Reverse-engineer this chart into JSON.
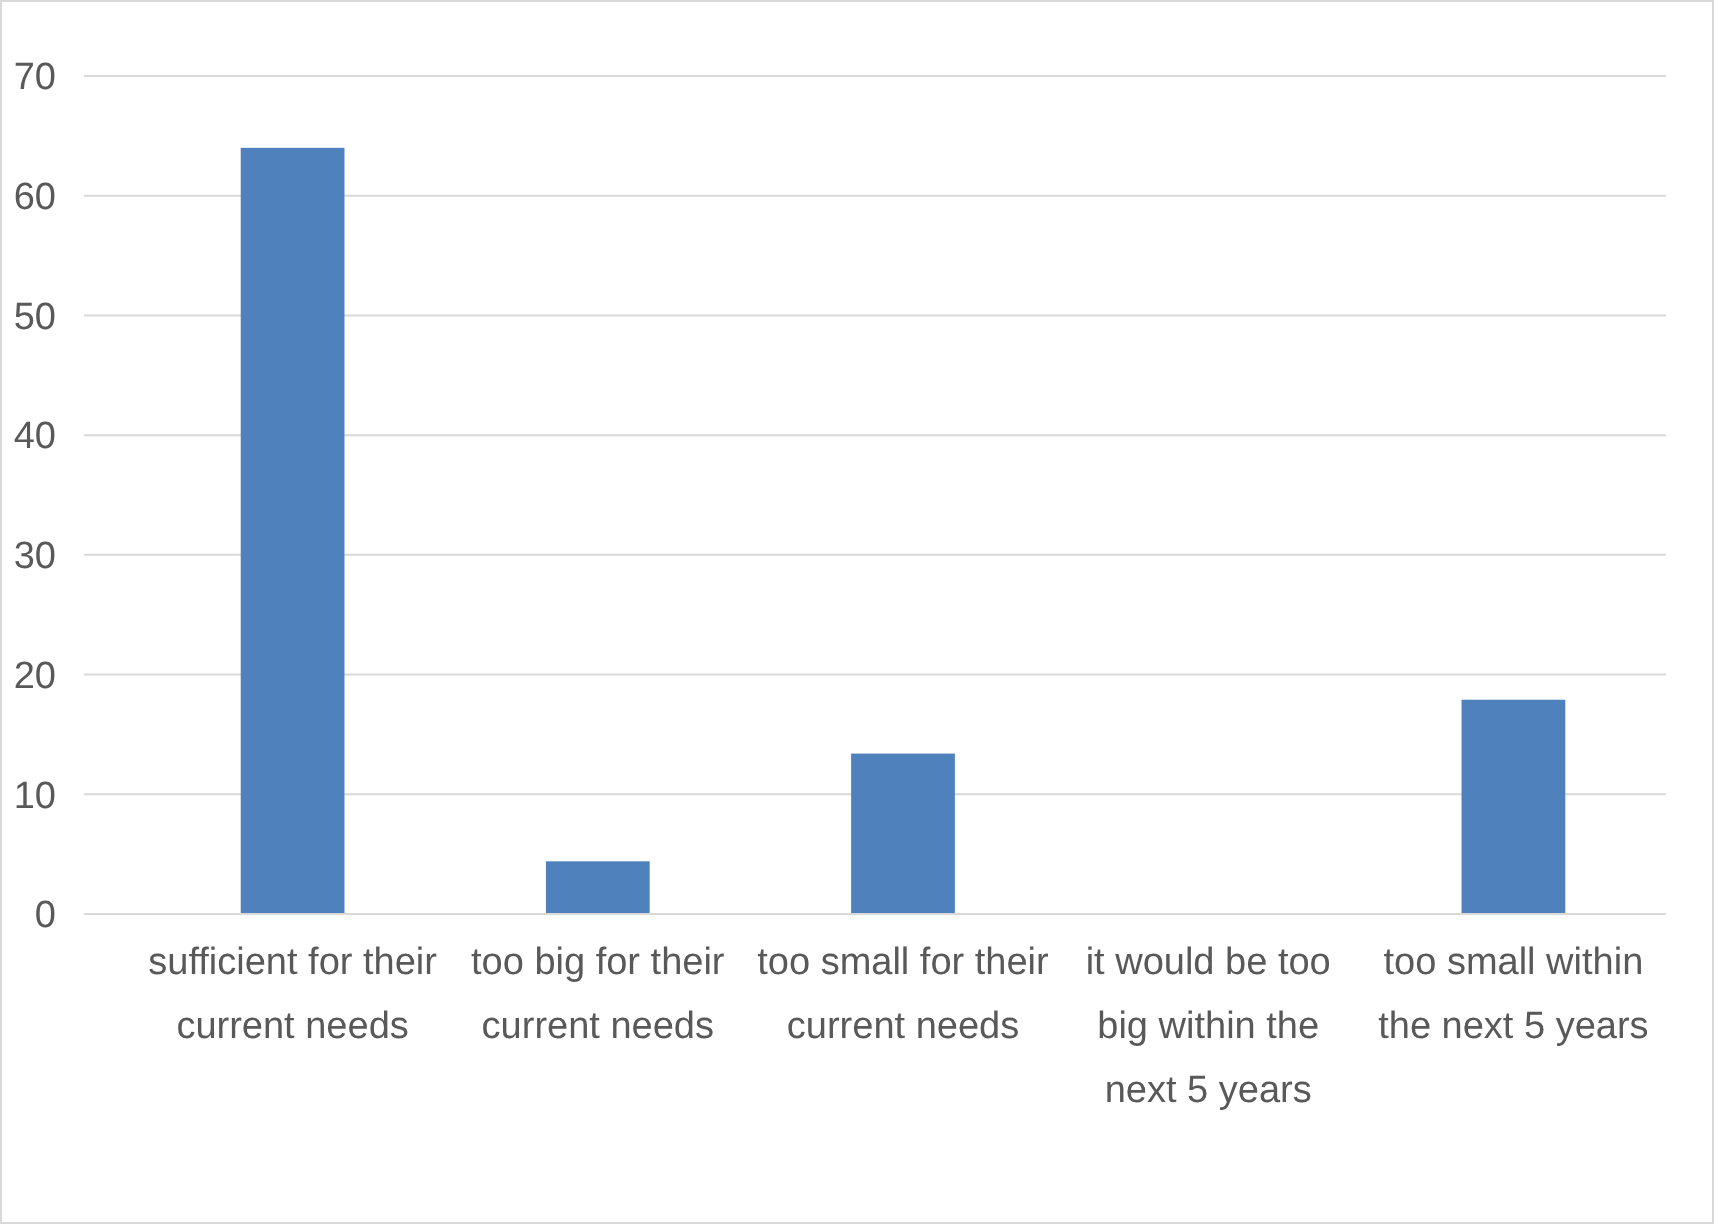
{
  "chart_data": {
    "type": "bar",
    "categories": [
      "sufficient for their current needs",
      "too big for their current needs",
      "too small for their current needs",
      "it would be too big within the next 5 years",
      "too small within the next 5 years"
    ],
    "values": [
      64,
      4.4,
      13.4,
      0,
      17.9
    ],
    "color": "#4f81bd",
    "ylim": [
      0,
      70
    ],
    "yticks": [
      0,
      10,
      20,
      30,
      40,
      50,
      60,
      70
    ],
    "grid": "y"
  }
}
